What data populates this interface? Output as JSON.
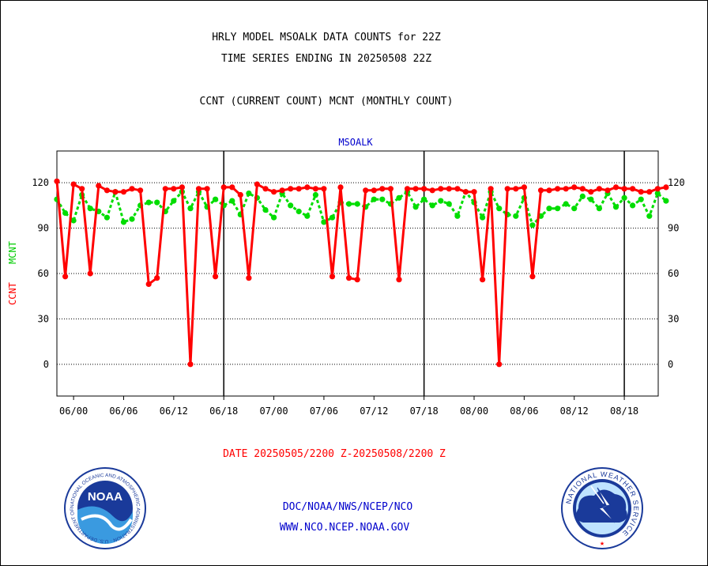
{
  "header": {
    "line1": "HRLY MODEL MSOALK DATA COUNTS for 22Z",
    "line2": "TIME SERIES ENDING IN 20250508 22Z",
    "line3": "CCNT (CURRENT COUNT) MCNT (MONTHLY COUNT)"
  },
  "footer": {
    "date_range": "DATE 20250505/2200 Z-20250508/2200 Z",
    "org_path": "DOC/NOAA/NWS/NCEP/NCO",
    "website": "WWW.NCO.NCEP.NOAA.GOV",
    "noaa_logo_text": "NOAA",
    "noaa_ring_text": "NATIONAL OCEANIC AND ATMOSPHERIC ADMINISTRATION · U.S. DEPARTMENT OF COMMERCE ·",
    "nws_ring_text": "NATIONAL WEATHER SERVICE"
  },
  "colors": {
    "ccnt": "#ff0000",
    "mcnt": "#00dd00",
    "station_label": "#0000cc",
    "footer_links": "#0000cc"
  },
  "chart_data": {
    "type": "line",
    "title": "MSOALK",
    "ylabel_series": [
      "CCNT",
      "MCNT"
    ],
    "ylim": [
      -21,
      141
    ],
    "yticks": [
      0,
      30,
      60,
      90,
      120
    ],
    "x_start": "2025-05-05T22:00Z",
    "x_end": "2025-05-08T22:00Z",
    "xticks": [
      "06/00",
      "06/06",
      "06/12",
      "06/18",
      "07/00",
      "07/06",
      "07/12",
      "07/18",
      "08/00",
      "08/06",
      "08/12",
      "08/18"
    ],
    "day_boundaries": [
      "06/18",
      "07/18",
      "08/18"
    ],
    "grid": true,
    "series": [
      {
        "name": "CCNT",
        "values": [
          121,
          58,
          119,
          116,
          60,
          118,
          115,
          114,
          114,
          116,
          115,
          53,
          57,
          116,
          116,
          117,
          0,
          116,
          116,
          58,
          117,
          117,
          112,
          57,
          119,
          116,
          114,
          115,
          116,
          116,
          117,
          116,
          116,
          58,
          117,
          57,
          56,
          115,
          115,
          116,
          116,
          56,
          116,
          116,
          116,
          115,
          116,
          116,
          116,
          114,
          114,
          56,
          116,
          0,
          116,
          116,
          117,
          58,
          115,
          115,
          116,
          116,
          117,
          116,
          114,
          116,
          115,
          117,
          116,
          116,
          114,
          114,
          116,
          117
        ]
      },
      {
        "name": "MCNT",
        "values": [
          109,
          100,
          95,
          112,
          103,
          101,
          97,
          114,
          94,
          96,
          105,
          107,
          107,
          101,
          108,
          114,
          103,
          114,
          104,
          109,
          105,
          108,
          99,
          113,
          110,
          102,
          97,
          113,
          105,
          101,
          98,
          112,
          94,
          97,
          107,
          106,
          106,
          104,
          109,
          109,
          106,
          110,
          114,
          104,
          109,
          105,
          108,
          106,
          98,
          114,
          107,
          97,
          114,
          103,
          99,
          98,
          110,
          92,
          98,
          103,
          103,
          106,
          103,
          111,
          109,
          103,
          113,
          104,
          110,
          105,
          109,
          98,
          113,
          108
        ]
      }
    ]
  }
}
